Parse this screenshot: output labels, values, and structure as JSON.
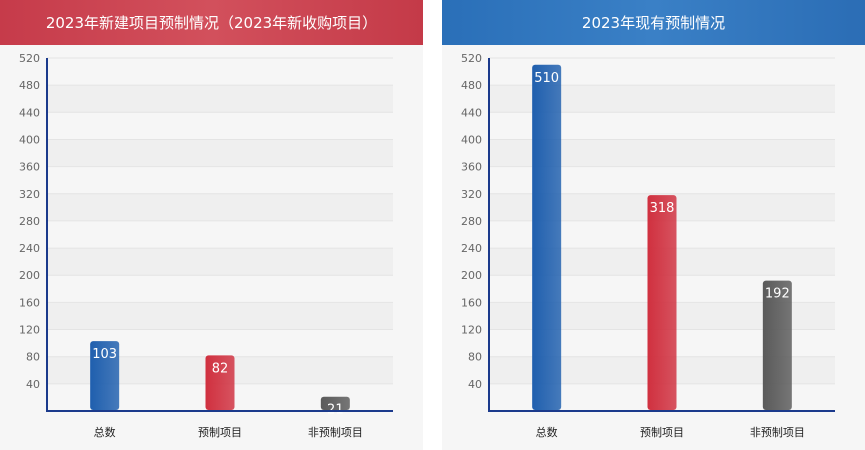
{
  "chart_data": [
    {
      "type": "bar",
      "title": "2023年新建项目预制情况（2023年新收购项目）",
      "categories": [
        "总数",
        "预制项目",
        "非预制项目"
      ],
      "values": [
        103,
        82,
        21
      ],
      "ylim": [
        0,
        520
      ],
      "yticks": [
        40,
        80,
        120,
        160,
        200,
        240,
        280,
        320,
        360,
        400,
        440,
        480,
        520
      ],
      "colors": [
        "#1f5fae",
        "#d0303f",
        "#5a5a5a"
      ],
      "header_color": "#c94352",
      "grid": true
    },
    {
      "type": "bar",
      "title": "2023年现有预制情况",
      "categories": [
        "总数",
        "预制项目",
        "非预制项目"
      ],
      "values": [
        510,
        318,
        192
      ],
      "ylim": [
        0,
        520
      ],
      "yticks": [
        40,
        80,
        120,
        160,
        200,
        240,
        280,
        320,
        360,
        400,
        440,
        480,
        520
      ],
      "colors": [
        "#1f5fae",
        "#d0303f",
        "#5a5a5a"
      ],
      "header_color": "#2f74bc",
      "grid": true
    }
  ]
}
